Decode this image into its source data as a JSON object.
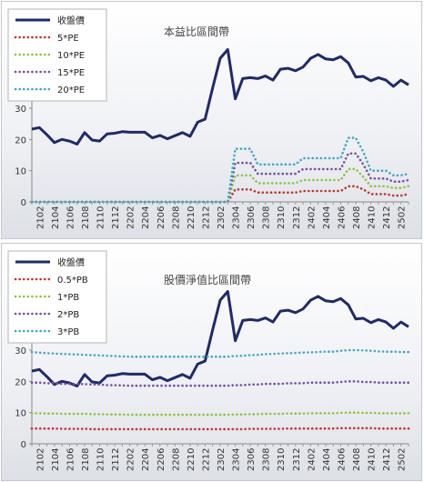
{
  "chart_data": [
    {
      "type": "line",
      "title": "本益比區間帶",
      "x": [
        "2101",
        "2102",
        "2103",
        "2104",
        "2105",
        "2106",
        "2107",
        "2108",
        "2109",
        "2110",
        "2111",
        "2112",
        "2201",
        "2202",
        "2203",
        "2204",
        "2205",
        "2206",
        "2207",
        "2208",
        "2209",
        "2210",
        "2211",
        "2212",
        "2301",
        "2302",
        "2303",
        "2304",
        "2305",
        "2306",
        "2307",
        "2308",
        "2309",
        "2310",
        "2311",
        "2312",
        "2401",
        "2402",
        "2403",
        "2404",
        "2405",
        "2406",
        "2407",
        "2408",
        "2409",
        "2410",
        "2411",
        "2412",
        "2501",
        "2502",
        "2503"
      ],
      "x_tick_labels": [
        "2102",
        "2104",
        "2106",
        "2108",
        "2110",
        "2112",
        "2202",
        "2204",
        "2206",
        "2208",
        "2210",
        "2212",
        "2302",
        "2304",
        "2306",
        "2308",
        "2310",
        "2312",
        "2402",
        "2404",
        "2406",
        "2408",
        "2410",
        "2412",
        "2502"
      ],
      "ylim": [
        0,
        60
      ],
      "y_ticks": [
        0,
        10,
        20,
        30,
        40,
        50,
        60
      ],
      "legend_position": "top-left",
      "series": [
        {
          "name": "收盤價",
          "color": "#1f2a6b",
          "style": "solid",
          "values": [
            23.3,
            23.8,
            21.5,
            19,
            20,
            19.5,
            18.5,
            22.2,
            19.8,
            19.5,
            21.8,
            22,
            22.5,
            22.3,
            22.3,
            22.3,
            20.5,
            21.3,
            20.2,
            21.2,
            22.2,
            21,
            25.5,
            26.5,
            36.5,
            46,
            48.8,
            33,
            39.5,
            39.8,
            39.5,
            40.3,
            39,
            42.5,
            42.8,
            42,
            43.2,
            46,
            47.2,
            45.8,
            45.5,
            46.5,
            44.5,
            40,
            40.2,
            38.8,
            39.8,
            39,
            37,
            39,
            37.5
          ]
        },
        {
          "name": "5*PE",
          "color": "#c0392b",
          "style": "dotted",
          "values": [
            0,
            0,
            0,
            0,
            0,
            0,
            0,
            0,
            0,
            0,
            0,
            0,
            0,
            0,
            0,
            0,
            0,
            0,
            0,
            0,
            0,
            0,
            0,
            0,
            0,
            0,
            0,
            4,
            4,
            4,
            3,
            3,
            3,
            3,
            3,
            3,
            3.5,
            3.5,
            3.5,
            3.5,
            3.5,
            3.5,
            5,
            5,
            4,
            2.5,
            2.5,
            2.5,
            2,
            2,
            2.5
          ]
        },
        {
          "name": "10*PE",
          "color": "#8dc63f",
          "style": "dotted",
          "values": [
            0,
            0,
            0,
            0,
            0,
            0,
            0,
            0,
            0,
            0,
            0,
            0,
            0,
            0,
            0,
            0,
            0,
            0,
            0,
            0,
            0,
            0,
            0,
            0,
            0,
            0,
            0,
            8.5,
            8.5,
            8.5,
            6,
            6,
            6,
            6,
            6,
            6,
            7,
            7,
            7,
            7,
            7,
            7,
            10.5,
            10.5,
            8,
            5,
            5,
            5,
            4.5,
            4.5,
            5
          ]
        },
        {
          "name": "15*PE",
          "color": "#7b4fa0",
          "style": "dotted",
          "values": [
            0,
            0,
            0,
            0,
            0,
            0,
            0,
            0,
            0,
            0,
            0,
            0,
            0,
            0,
            0,
            0,
            0,
            0,
            0,
            0,
            0,
            0,
            0,
            0,
            0,
            0,
            0,
            12.5,
            12.5,
            12.5,
            9,
            9,
            9,
            9,
            9,
            9,
            10.5,
            10.5,
            10.5,
            10.5,
            10.5,
            10.5,
            15.5,
            15.5,
            12,
            7.5,
            7.5,
            7.5,
            6.5,
            6.5,
            7
          ]
        },
        {
          "name": "20*PE",
          "color": "#3fa9c5",
          "style": "dotted",
          "values": [
            0,
            0,
            0,
            0,
            0,
            0,
            0,
            0,
            0,
            0,
            0,
            0,
            0,
            0,
            0,
            0,
            0,
            0,
            0,
            0,
            0,
            0,
            0,
            0,
            0,
            0,
            0,
            17,
            17,
            17,
            12,
            12,
            12,
            12,
            12,
            12,
            14,
            14,
            14,
            14,
            14,
            14,
            20.5,
            20.5,
            16,
            10,
            10,
            10,
            8.5,
            8.5,
            9
          ]
        }
      ]
    },
    {
      "type": "line",
      "title": "股價淨值比區間帶",
      "x": [
        "2101",
        "2102",
        "2103",
        "2104",
        "2105",
        "2106",
        "2107",
        "2108",
        "2109",
        "2110",
        "2111",
        "2112",
        "2201",
        "2202",
        "2203",
        "2204",
        "2205",
        "2206",
        "2207",
        "2208",
        "2209",
        "2210",
        "2211",
        "2212",
        "2301",
        "2302",
        "2303",
        "2304",
        "2305",
        "2306",
        "2307",
        "2308",
        "2309",
        "2310",
        "2311",
        "2312",
        "2401",
        "2402",
        "2403",
        "2404",
        "2405",
        "2406",
        "2407",
        "2408",
        "2409",
        "2410",
        "2411",
        "2412",
        "2501",
        "2502",
        "2503"
      ],
      "x_tick_labels": [
        "2102",
        "2104",
        "2106",
        "2108",
        "2110",
        "2112",
        "2202",
        "2204",
        "2206",
        "2208",
        "2210",
        "2212",
        "2302",
        "2304",
        "2306",
        "2308",
        "2310",
        "2312",
        "2402",
        "2404",
        "2406",
        "2408",
        "2410",
        "2412",
        "2502"
      ],
      "ylim": [
        0,
        60
      ],
      "y_ticks": [
        0,
        10,
        20,
        30,
        40,
        50,
        60
      ],
      "legend_position": "top-left",
      "series": [
        {
          "name": "收盤價",
          "color": "#1f2a6b",
          "style": "solid",
          "values": [
            23.3,
            23.8,
            21.5,
            19,
            20,
            19.5,
            18.5,
            22.2,
            19.8,
            19.5,
            21.8,
            22,
            22.5,
            22.3,
            22.3,
            22.3,
            20.5,
            21.3,
            20.2,
            21.2,
            22.2,
            21,
            25.5,
            26.5,
            36.5,
            46,
            48.8,
            33,
            39.5,
            39.8,
            39.5,
            40.3,
            39,
            42.5,
            42.8,
            42,
            43.2,
            46,
            47.2,
            45.8,
            45.5,
            46.5,
            44.5,
            40,
            40.2,
            38.8,
            39.8,
            39,
            37,
            39,
            37.5
          ]
        },
        {
          "name": "0.5*PB",
          "color": "#c0392b",
          "style": "dotted",
          "values": [
            4.9,
            4.9,
            4.9,
            4.9,
            4.8,
            4.8,
            4.8,
            4.8,
            4.7,
            4.7,
            4.7,
            4.7,
            4.7,
            4.7,
            4.7,
            4.7,
            4.7,
            4.7,
            4.7,
            4.7,
            4.7,
            4.7,
            4.7,
            4.7,
            4.7,
            4.7,
            4.7,
            4.7,
            4.7,
            4.8,
            4.8,
            4.8,
            4.8,
            4.8,
            4.9,
            4.9,
            4.9,
            4.9,
            4.9,
            4.9,
            4.9,
            5,
            5,
            5,
            5,
            5,
            4.9,
            4.9,
            4.9,
            4.9,
            4.9
          ]
        },
        {
          "name": "1*PB",
          "color": "#8dc63f",
          "style": "dotted",
          "values": [
            9.8,
            9.8,
            9.7,
            9.7,
            9.6,
            9.6,
            9.6,
            9.6,
            9.5,
            9.5,
            9.4,
            9.4,
            9.4,
            9.3,
            9.3,
            9.3,
            9.3,
            9.3,
            9.3,
            9.3,
            9.3,
            9.3,
            9.3,
            9.3,
            9.3,
            9.3,
            9.3,
            9.4,
            9.4,
            9.5,
            9.5,
            9.6,
            9.6,
            9.6,
            9.7,
            9.7,
            9.7,
            9.8,
            9.8,
            9.8,
            9.8,
            9.9,
            10,
            10,
            9.9,
            9.9,
            9.8,
            9.8,
            9.8,
            9.8,
            9.8
          ]
        },
        {
          "name": "2*PB",
          "color": "#7b4fa0",
          "style": "dotted",
          "values": [
            19.6,
            19.6,
            19.4,
            19.4,
            19.2,
            19.2,
            19.2,
            19.1,
            19,
            19,
            18.8,
            18.8,
            18.7,
            18.6,
            18.6,
            18.6,
            18.6,
            18.6,
            18.6,
            18.6,
            18.6,
            18.6,
            18.6,
            18.6,
            18.6,
            18.6,
            18.6,
            18.8,
            18.8,
            19,
            19,
            19.2,
            19.2,
            19.2,
            19.4,
            19.4,
            19.4,
            19.6,
            19.6,
            19.6,
            19.6,
            19.8,
            20,
            20,
            19.8,
            19.8,
            19.6,
            19.6,
            19.6,
            19.6,
            19.6
          ]
        },
        {
          "name": "3*PB",
          "color": "#3fa9c5",
          "style": "dotted",
          "values": [
            29.4,
            29.2,
            29,
            28.9,
            28.8,
            28.7,
            28.6,
            28.5,
            28.4,
            28.3,
            28.2,
            28.1,
            28,
            27.9,
            27.9,
            27.9,
            27.9,
            27.9,
            27.9,
            27.9,
            27.9,
            27.9,
            27.9,
            27.9,
            27.9,
            27.9,
            27.9,
            28.1,
            28.2,
            28.4,
            28.5,
            28.7,
            28.8,
            28.9,
            29,
            29.1,
            29.2,
            29.3,
            29.4,
            29.5,
            29.5,
            29.8,
            30,
            30,
            29.9,
            29.8,
            29.6,
            29.5,
            29.5,
            29.4,
            29.4
          ]
        }
      ]
    }
  ]
}
